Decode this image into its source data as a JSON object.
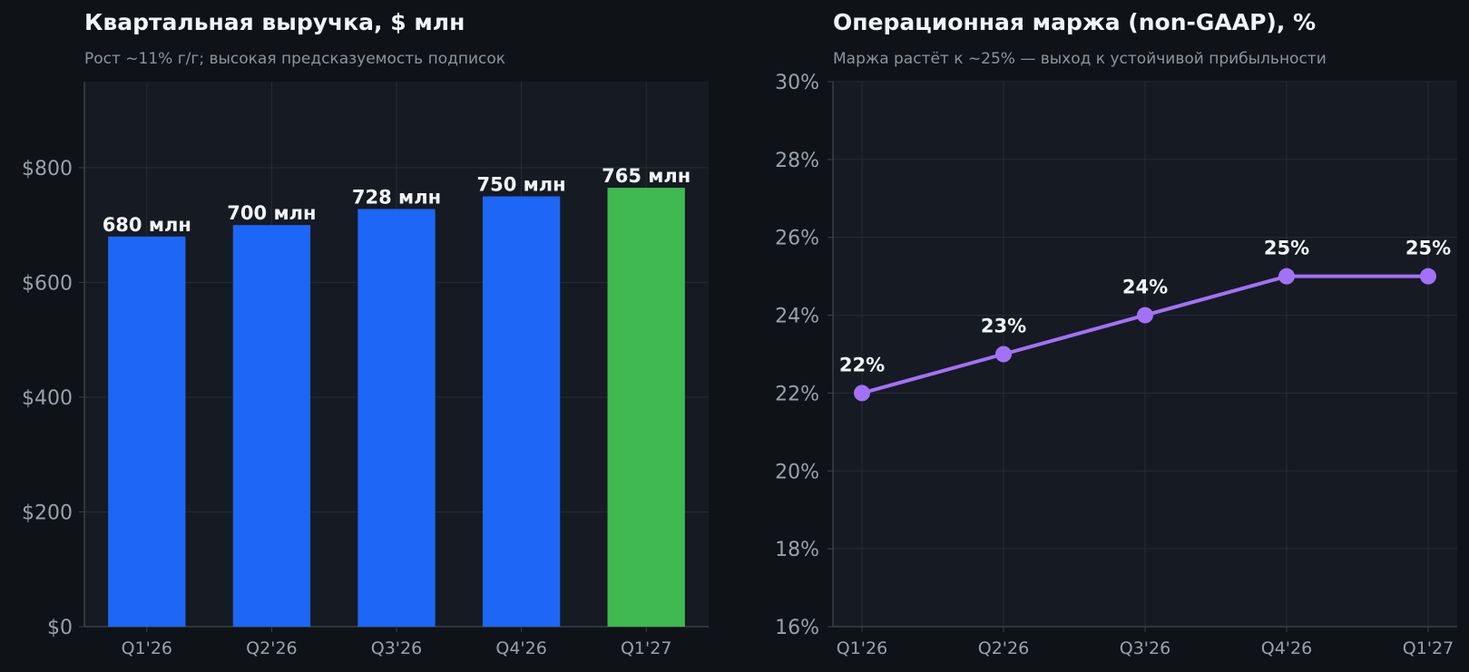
{
  "colors": {
    "page_bg": "#0f1317",
    "plot_bg": "#161a22",
    "grid": "#262b34",
    "axis": "#3a3f48",
    "tick_text": "#9aa1ab",
    "value_text": "#f2f4f7",
    "bar_primary": "#1e66f5",
    "bar_highlight": "#3fb950",
    "line": "#a371f7"
  },
  "chart_data": [
    {
      "type": "bar",
      "title": "Квартальная выручка, $ млн",
      "subtitle": "Рост ~11% г/г; высокая предсказуемость подписок",
      "categories": [
        "Q1'26",
        "Q2'26",
        "Q3'26",
        "Q4'26",
        "Q1'27"
      ],
      "values": [
        680,
        700,
        728,
        750,
        765
      ],
      "value_labels": [
        "680 млн",
        "700 млн",
        "728 млн",
        "750 млн",
        "765 млн"
      ],
      "highlight_index": 4,
      "ylim": [
        0,
        950
      ],
      "yticks": [
        0,
        200,
        400,
        600,
        800
      ],
      "ytick_labels": [
        "$0",
        "$200",
        "$400",
        "$600",
        "$800"
      ],
      "grid": true
    },
    {
      "type": "line",
      "title": "Операционная маржа (non-GAAP), %",
      "subtitle": "Маржа растёт к ~25% — выход к устойчивой прибыльности",
      "categories": [
        "Q1'26",
        "Q2'26",
        "Q3'26",
        "Q4'26",
        "Q1'27"
      ],
      "values": [
        22,
        23,
        24,
        25,
        25
      ],
      "value_labels": [
        "22%",
        "23%",
        "24%",
        "25%",
        "25%"
      ],
      "ylim": [
        16,
        30
      ],
      "yticks": [
        16,
        18,
        20,
        22,
        24,
        26,
        28,
        30
      ],
      "ytick_labels": [
        "16%",
        "18%",
        "20%",
        "22%",
        "24%",
        "26%",
        "28%",
        "30%"
      ],
      "grid": true
    }
  ]
}
